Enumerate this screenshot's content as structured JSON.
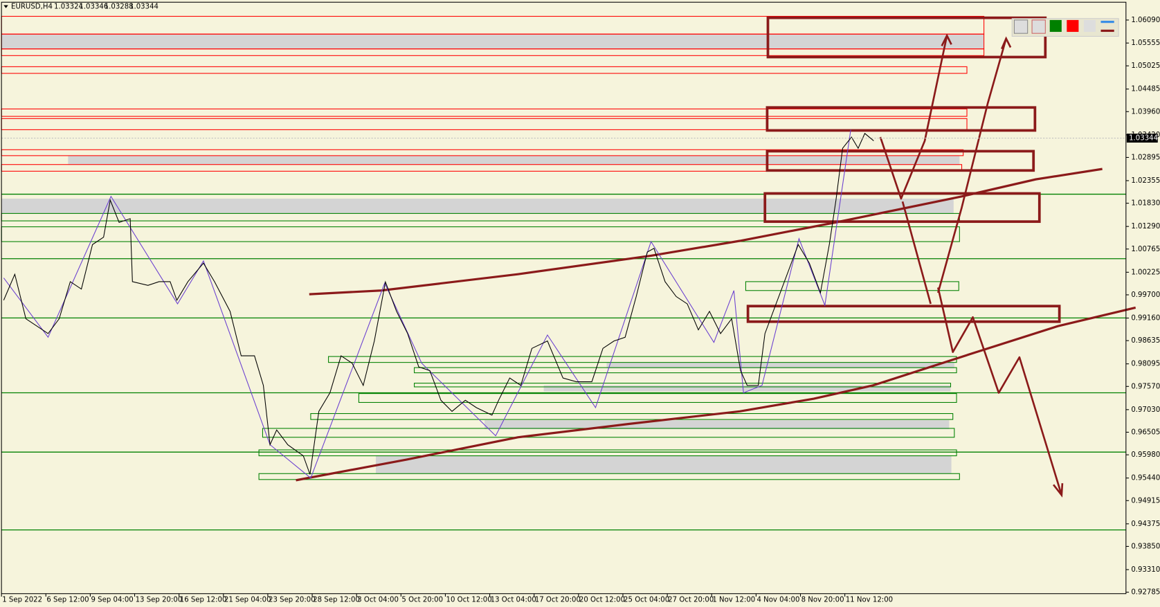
{
  "chart_data": {
    "type": "line",
    "symbol": "EURUSD,H4",
    "ohlc": [
      1.03324,
      1.03346,
      1.03288,
      1.03344
    ],
    "current_price": 1.03344,
    "x": [
      1,
      6,
      11,
      21,
      26,
      31,
      36,
      41,
      46,
      49,
      53,
      58,
      59,
      66,
      71,
      76,
      79,
      84,
      91,
      96,
      103,
      108,
      114,
      118,
      121,
      124,
      129,
      136,
      139,
      143,
      148,
      153,
      158,
      163,
      168,
      173,
      178,
      183,
      188,
      193,
      198,
      203,
      209,
      214,
      221,
      224,
      229,
      234,
      239,
      246,
      253,
      259,
      266,
      271,
      276,
      281,
      286,
      291,
      294,
      299,
      304,
      309,
      314,
      319,
      324,
      329,
      333,
      336,
      341,
      344,
      349,
      354,
      359,
      364,
      369,
      373,
      376,
      379,
      383,
      386,
      389,
      393
    ],
    "series": [
      {
        "color": "#000000",
        "values": [
          0.99575,
          1.00178,
          0.99144,
          0.98799,
          0.99144,
          1.00006,
          0.99834,
          1.00868,
          1.0104,
          1.01902,
          1.01385,
          1.01471,
          1.00006,
          0.9992,
          1.00006,
          1.00006,
          0.99575,
          1.00006,
          1.00437,
          1.00006,
          0.99316,
          0.98282,
          0.98282,
          0.97593,
          0.96214,
          0.96559,
          0.96214,
          0.95956,
          0.95525,
          0.9699,
          0.97421,
          0.98282,
          0.9811,
          0.97593,
          0.98627,
          1.0,
          0.99316,
          0.98799,
          0.98024,
          0.97938,
          0.97248,
          0.9699,
          0.97248,
          0.97076,
          0.96903,
          0.97248,
          0.97765,
          0.97593,
          0.98455,
          0.98627,
          0.97765,
          0.97679,
          0.97679,
          0.98455,
          0.98627,
          0.98713,
          0.99661,
          1.00695,
          1.00781,
          1.00006,
          0.99661,
          0.99489,
          0.98886,
          0.99316,
          0.98799,
          0.99144,
          0.97938,
          0.97593,
          0.97593,
          0.98799,
          0.99489,
          1.00178,
          1.00868,
          1.00437,
          0.99747,
          1.00868,
          1.01902,
          1.03108,
          1.03367,
          1.03108,
          1.03453,
          1.03281
        ]
      }
    ],
    "xlim": [
      0,
      506.67
    ],
    "xticks": [
      {
        "value": 0,
        "label": "1 Sep 2022"
      },
      {
        "value": 20,
        "label": "6 Sep 12:00"
      },
      {
        "value": 40,
        "label": "9 Sep 04:00"
      },
      {
        "value": 60,
        "label": "13 Sep 20:00"
      },
      {
        "value": 80,
        "label": "16 Sep 12:00"
      },
      {
        "value": 100,
        "label": "21 Sep 04:00"
      },
      {
        "value": 120,
        "label": "23 Sep 20:00"
      },
      {
        "value": 140,
        "label": "28 Sep 12:00"
      },
      {
        "value": 160,
        "label": "3 Oct 04:00"
      },
      {
        "value": 180,
        "label": "5 Oct 20:00"
      },
      {
        "value": 200,
        "label": "10 Oct 12:00"
      },
      {
        "value": 220,
        "label": "13 Oct 04:00"
      },
      {
        "value": 240,
        "label": "17 Oct 20:00"
      },
      {
        "value": 260,
        "label": "20 Oct 12:00"
      },
      {
        "value": 280,
        "label": "25 Oct 04:00"
      },
      {
        "value": 300,
        "label": "27 Oct 20:00"
      },
      {
        "value": 320,
        "label": "1 Nov 12:00"
      },
      {
        "value": 340,
        "label": "4 Nov 04:00"
      },
      {
        "value": 360,
        "label": "8 Nov 20:00"
      },
      {
        "value": 380,
        "label": "11 Nov 12:00"
      }
    ],
    "ylim": [
      0.92751,
      1.06504
    ],
    "yticks": [
      {
        "value": 1.0609,
        "label": "1.06090"
      },
      1.05555,
      1.05025,
      1.04485,
      {
        "value": 1.0396,
        "label": "1.03960"
      },
      {
        "value": 1.0342,
        "label": "1.03420"
      },
      1.02895,
      1.02355,
      {
        "value": 1.0183,
        "label": "1.01830"
      },
      {
        "value": 1.0129,
        "label": "1.01290"
      },
      1.00765,
      1.00225,
      {
        "value": 0.997,
        "label": "0.99700"
      },
      {
        "value": 0.9916,
        "label": "0.99160"
      },
      0.98635,
      0.98095,
      {
        "value": 0.9757,
        "label": "0.97570"
      },
      {
        "value": 0.9703,
        "label": "0.97030"
      },
      0.96505,
      {
        "value": 0.9598,
        "label": "0.95980"
      },
      {
        "value": 0.9544,
        "label": "0.95440"
      },
      0.94915,
      0.94375,
      {
        "value": 0.9385,
        "label": "0.93850"
      },
      {
        "value": 0.9331,
        "label": "0.93310"
      },
      0.92785
    ]
  }
}
